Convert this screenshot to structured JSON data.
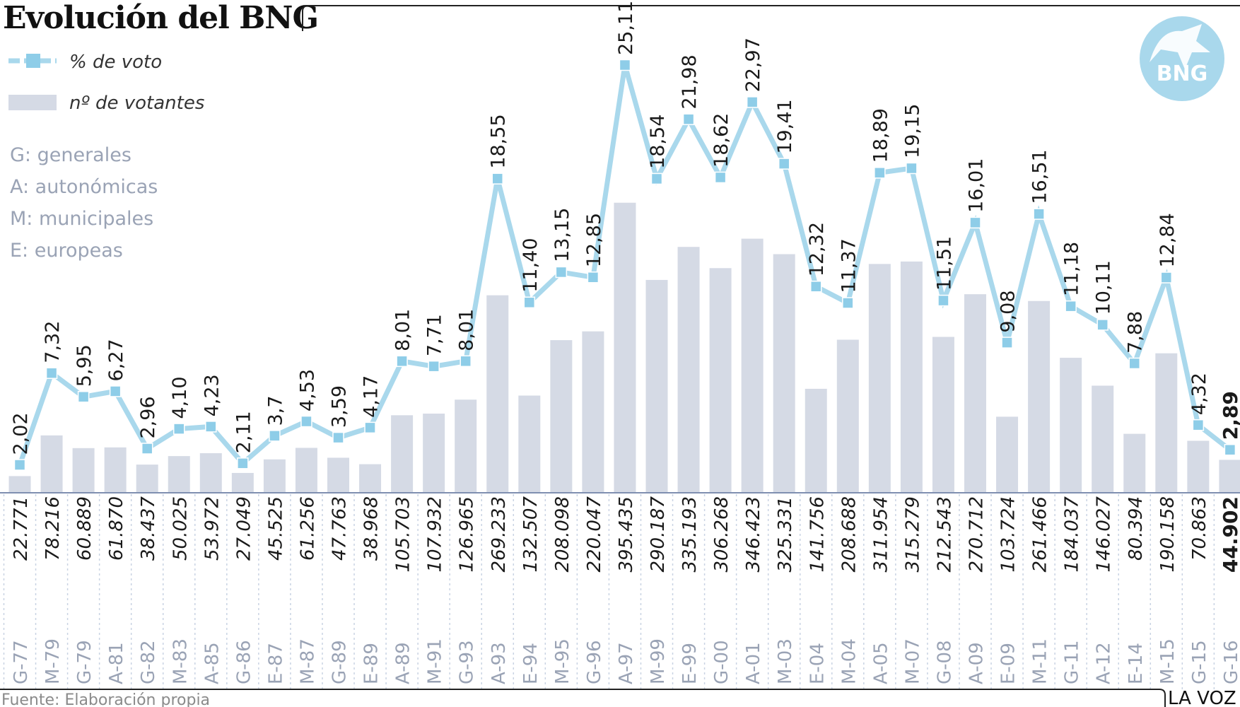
{
  "title": "Evolución del BNG",
  "legend": {
    "pct": "% de voto",
    "votes": "nº de votantes"
  },
  "abbreviations": [
    "G: generales",
    "A: autonómicas",
    "M: municipales",
    "E: europeas"
  ],
  "source": "Fuente: Elaboración propia",
  "brand": "LA VOZ",
  "logo_text": "BNG",
  "colors": {
    "line": "#a9d8ec",
    "marker": "#8ecde8",
    "bar": "#d5dae5",
    "axis": "#7f8fb0",
    "logo": "#a9d8ec"
  },
  "chart_data": {
    "type": "bar",
    "categories": [
      "G-77",
      "M-79",
      "G-79",
      "A-81",
      "G-82",
      "M-83",
      "A-85",
      "G-86",
      "E-87",
      "M-87",
      "G-89",
      "E-89",
      "A-89",
      "M-91",
      "G-93",
      "A-93",
      "E-94",
      "M-95",
      "G-96",
      "A-97",
      "M-99",
      "E-99",
      "G-00",
      "A-01",
      "M-03",
      "E-04",
      "M-04",
      "A-05",
      "M-07",
      "G-08",
      "A-09",
      "E-09",
      "M-11",
      "G-11",
      "A-12",
      "E-14",
      "M-15",
      "G-15",
      "G-16"
    ],
    "series": [
      {
        "name": "nº de votantes",
        "type": "bar",
        "values": [
          22771,
          78216,
          60889,
          61870,
          38437,
          50025,
          53972,
          27049,
          45525,
          61256,
          47763,
          38968,
          105703,
          107932,
          126965,
          269233,
          132507,
          208098,
          220047,
          395435,
          290187,
          335193,
          306268,
          346423,
          325331,
          141756,
          208688,
          311954,
          315279,
          212543,
          270712,
          103724,
          261466,
          184037,
          146027,
          80394,
          190158,
          70863,
          44902
        ],
        "labels": [
          "22.771",
          "78.216",
          "60.889",
          "61.870",
          "38.437",
          "50.025",
          "53.972",
          "27.049",
          "45.525",
          "61.256",
          "47.763",
          "38.968",
          "105.703",
          "107.932",
          "126.965",
          "269.233",
          "132.507",
          "208.098",
          "220.047",
          "395.435",
          "290.187",
          "335.193",
          "306.268",
          "346.423",
          "325.331",
          "141.756",
          "208.688",
          "311.954",
          "315.279",
          "212.543",
          "270.712",
          "103.724",
          "261.466",
          "184.037",
          "146.027",
          "80.394",
          "190.158",
          "70.863",
          "44.902"
        ]
      },
      {
        "name": "% de voto",
        "type": "line",
        "values": [
          2.02,
          7.32,
          5.95,
          6.27,
          2.96,
          4.1,
          4.23,
          2.11,
          3.7,
          4.53,
          3.59,
          4.17,
          8.01,
          7.71,
          8.01,
          18.55,
          11.4,
          13.15,
          12.85,
          25.11,
          18.54,
          21.98,
          18.62,
          22.97,
          19.41,
          12.32,
          11.37,
          18.89,
          19.15,
          11.51,
          16.01,
          9.08,
          16.51,
          11.18,
          10.11,
          7.88,
          12.84,
          4.32,
          2.89
        ],
        "labels": [
          "2,02",
          "7,32",
          "5,95",
          "6,27",
          "2,96",
          "4,10",
          "4,23",
          "2,11",
          "3,7",
          "4,53",
          "3,59",
          "4,17",
          "8,01",
          "7,71",
          "8,01",
          "18,55",
          "11,40",
          "13,15",
          "12,85",
          "25,11",
          "18,54",
          "21,98",
          "18,62",
          "22,97",
          "19,41",
          "12,32",
          "11,37",
          "18,89",
          "19,15",
          "11,51",
          "16,01",
          "9,08",
          "16,51",
          "11,18",
          "10,11",
          "7,88",
          "12,84",
          "4,32",
          "2,89"
        ]
      }
    ],
    "ylim_votes": [
      0,
      400000
    ],
    "ylim_pct": [
      0,
      26
    ]
  }
}
